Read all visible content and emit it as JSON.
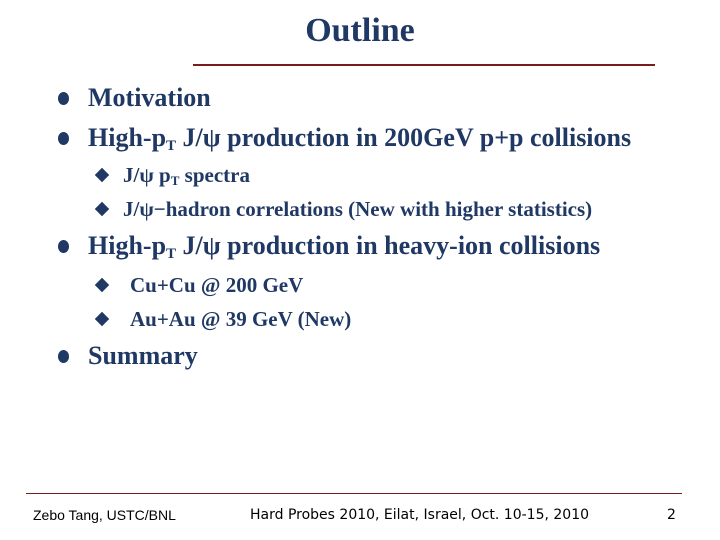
{
  "title": "Outline",
  "bullets": [
    {
      "text": "Motivation"
    },
    {
      "pre": "High-p",
      "sub": "T",
      "post": " J/ψ production in 200GeV p+p collisions"
    },
    {
      "pre": "High-p",
      "sub": "T",
      "post": " J/ψ production in heavy-ion collisions"
    },
    {
      "text": "Summary"
    }
  ],
  "subs_pp": [
    {
      "pre": "J/ψ p",
      "sub": "T",
      "post": " spectra"
    },
    {
      "text": "J/ψ−hadron correlations (New with higher statistics)"
    }
  ],
  "subs_hi": [
    {
      "text": "Cu+Cu @ 200 GeV"
    },
    {
      "text": "Au+Au @ 39 GeV (New)"
    }
  ],
  "footer": {
    "author": "Zebo Tang, USTC/BNL",
    "conference": "Hard Probes 2010, Eilat, Israel, Oct. 10-15, 2010",
    "page": "2"
  }
}
